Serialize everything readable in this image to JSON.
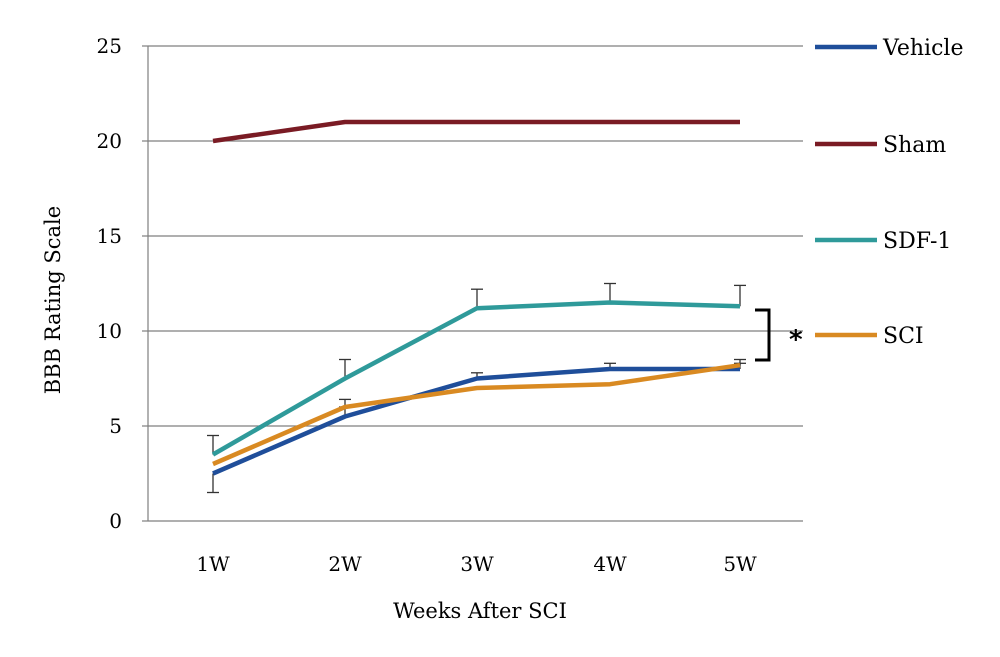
{
  "chart_data": {
    "type": "line",
    "xlabel": "Weeks After SCI",
    "ylabel": "BBB Rating Scale",
    "categories": [
      "1W",
      "2W",
      "3W",
      "4W",
      "5W"
    ],
    "ylim": [
      0,
      25
    ],
    "yticks": [
      0,
      5,
      10,
      15,
      20,
      25
    ],
    "grid": true,
    "legend_position": "right",
    "series": [
      {
        "name": "Vehicle",
        "color": "#1f4e9a",
        "values": [
          2.5,
          5.5,
          7.5,
          8.0,
          8.0
        ],
        "error_low": [
          1.5,
          null,
          null,
          null,
          null
        ],
        "error_high": [
          null,
          6.0,
          7.8,
          8.3,
          8.3
        ]
      },
      {
        "name": "Sham",
        "color": "#7a1b24",
        "values": [
          20,
          21,
          21,
          21,
          21
        ],
        "error_low": [
          null,
          null,
          null,
          null,
          null
        ],
        "error_high": [
          null,
          null,
          null,
          null,
          null
        ]
      },
      {
        "name": "SDF-1",
        "color": "#2f9a9a",
        "values": [
          3.5,
          7.5,
          11.2,
          11.5,
          11.3
        ],
        "error_low": [
          null,
          null,
          null,
          null,
          null
        ],
        "error_high": [
          4.5,
          8.5,
          12.2,
          12.5,
          12.4
        ]
      },
      {
        "name": "SCI",
        "color": "#d98a22",
        "values": [
          3.0,
          6.0,
          7.0,
          7.2,
          8.2
        ],
        "error_low": [
          null,
          null,
          null,
          null,
          null
        ],
        "error_high": [
          null,
          6.4,
          null,
          null,
          8.5
        ]
      }
    ],
    "annotations": [
      {
        "text": "*",
        "between": [
          "SDF-1",
          "SCI"
        ],
        "at": "5W"
      }
    ]
  }
}
